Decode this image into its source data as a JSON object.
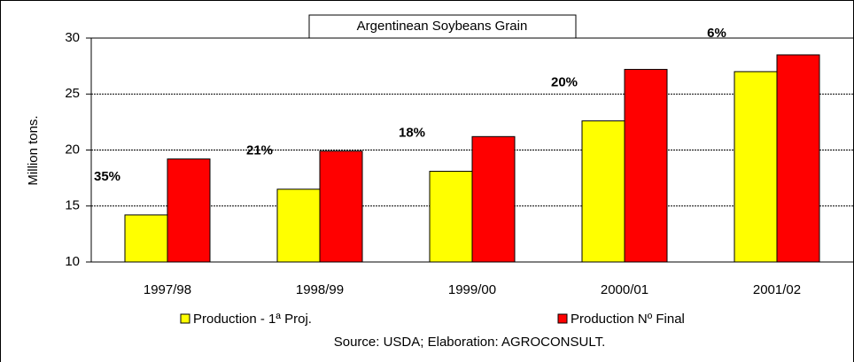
{
  "chart_data": {
    "type": "bar",
    "title": "Argentinean Soybeans Grain",
    "y_label": "Million tons.",
    "source": "Source: USDA; Elaboration: AGROCONSULT.",
    "categories": [
      "1997/98",
      "1998/99",
      "1999/00",
      "2000/01",
      "2001/02"
    ],
    "series": [
      {
        "name": "Production - 1ª Proj.",
        "color": "#ffff00",
        "values": [
          14.2,
          16.5,
          18.1,
          22.6,
          27.0
        ]
      },
      {
        "name": "Production Nº Final",
        "color": "#ff0000",
        "values": [
          19.2,
          19.9,
          21.2,
          27.2,
          28.5
        ]
      }
    ],
    "annotations": [
      "35%",
      "21%",
      "18%",
      "20%",
      "6%"
    ],
    "ylim": [
      10,
      30
    ],
    "yticks": [
      10,
      15,
      20,
      25,
      30
    ],
    "grid": true
  }
}
